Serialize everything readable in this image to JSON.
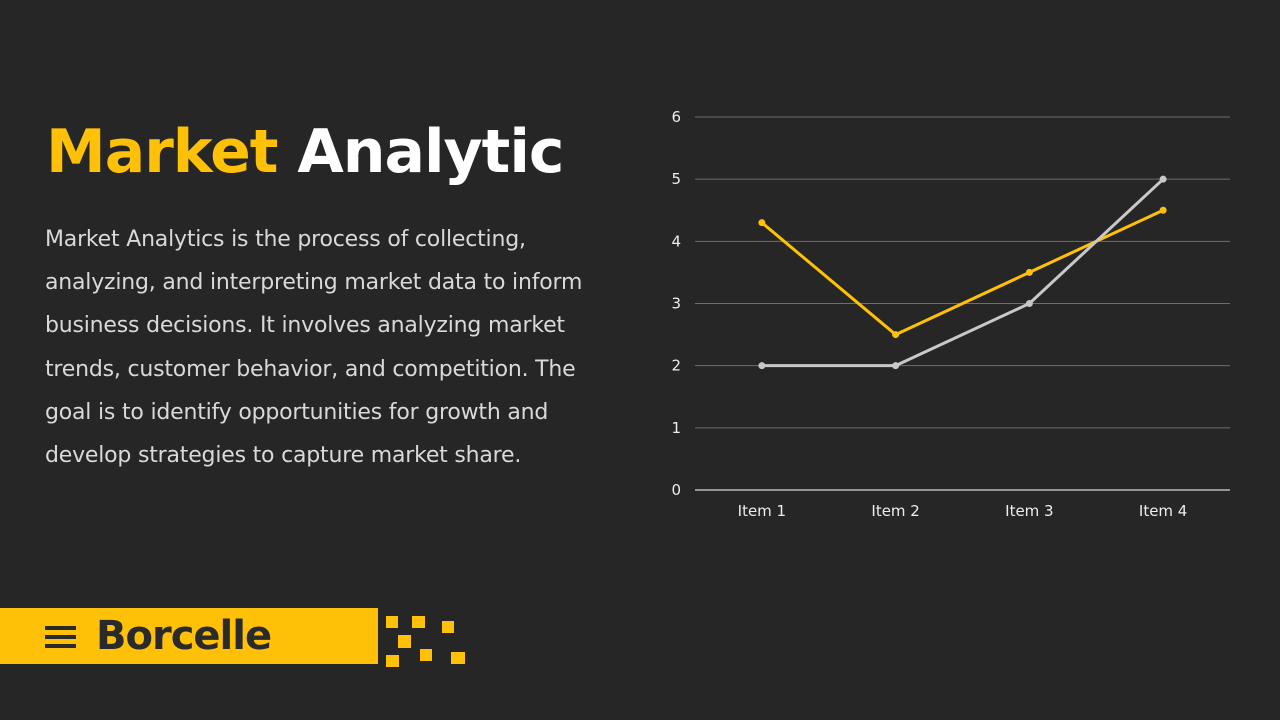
{
  "slide": {
    "title_accent": "Market",
    "title_main": "Analytic",
    "description": "Market Analytics is the process of collecting, analyzing, and interpreting market data to inform business decisions. It involves analyzing market trends, customer behavior, and competition. The goal is to identify opportunities for growth and develop strategies to capture market share.",
    "brand": "Borcelle",
    "menu_icon": "hamburger-menu-icon"
  },
  "colors": {
    "background": "#262626",
    "accent": "#FFC107",
    "text": "#D9D9D9",
    "series_gray": "#C8C8C8"
  },
  "chart_data": {
    "type": "line",
    "categories": [
      "Item 1",
      "Item 2",
      "Item 3",
      "Item 4"
    ],
    "series": [
      {
        "color": "#FFC107",
        "values": [
          4.3,
          2.5,
          3.5,
          4.5
        ]
      },
      {
        "color": "#C8C8C8",
        "values": [
          2,
          2,
          3,
          5
        ]
      }
    ],
    "ylim": [
      0,
      6
    ],
    "yticks": [
      0,
      1,
      2,
      3,
      4,
      5,
      6
    ],
    "grid": true,
    "legend": "none",
    "title": "",
    "xlabel": "",
    "ylabel": ""
  }
}
